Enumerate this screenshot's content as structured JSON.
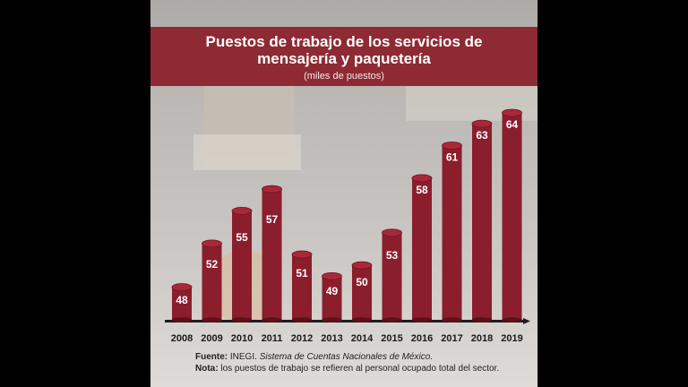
{
  "chart_data": {
    "type": "bar",
    "title": "Puestos de trabajo de los servicios de mensajería y paquetería",
    "subtitle": "(miles de puestos)",
    "categories": [
      "2008",
      "2009",
      "2010",
      "2011",
      "2012",
      "2013",
      "2014",
      "2015",
      "2016",
      "2017",
      "2018",
      "2019"
    ],
    "values": [
      48,
      52,
      55,
      57,
      51,
      49,
      50,
      53,
      58,
      61,
      63,
      64
    ],
    "ylim": [
      40,
      65
    ],
    "grid": false,
    "legend": "none",
    "colors": {
      "bar": "#8b1e2c",
      "bar_top": "#a8283a",
      "title_band": "#8e2a34"
    }
  },
  "header": {
    "title_line1": "Puestos de trabajo de los servicios de",
    "title_line2": "mensajería y paquetería",
    "subtitle": "(miles de puestos)"
  },
  "footer": {
    "source_label": "Fuente:",
    "source_text": "INEGI.",
    "source_italic": "Sistema de Cuentas Nacionales de México.",
    "note_label": "Nota:",
    "note_text": "los puestos de trabajo se refieren al personal ocupado total del sector."
  }
}
